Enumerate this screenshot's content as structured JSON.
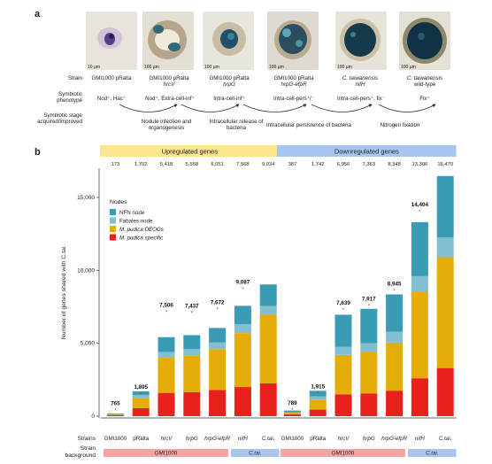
{
  "panel_a": {
    "letter": "a",
    "row_labels": {
      "strain": "Strain",
      "phenotype": "Symbiotic phenotype",
      "stage": "Symbiotic stage acquired/improved"
    },
    "scale_bars": [
      "10 µm",
      "100 µm",
      "100 µm",
      "100 µm",
      "100 µm",
      "100 µm"
    ],
    "strains": [
      {
        "line1": "GMI1000 pRalta",
        "line2": ""
      },
      {
        "line1": "GMI1000 pRalta",
        "line2": "hrcV"
      },
      {
        "line1": "GMI1000 pRalta",
        "line2": "hrpG"
      },
      {
        "line1": "GMI1000 pRalta",
        "line2": "hrpG-efpR"
      },
      {
        "line1": "C. taiwanensis",
        "line2": "nifH"
      },
      {
        "line1": "C. taiwanensis",
        "line2": "wild-type"
      }
    ],
    "phenotypes": [
      "Nod⁺, Hac⁺",
      "Nod⁺, Extra-cell-inf⁺",
      "Intra-cell-inf⁺",
      "Intra-cell-pers⁺/⁻",
      "Intra-cell-pers⁺, fix⁻",
      "Fix⁺"
    ],
    "stages": [
      "Nodule infection and organogenesis",
      "Intracellular release of bacteria",
      "Intracellular persistence of bacteria",
      "Nitrogen fixation"
    ]
  },
  "panel_b": {
    "letter": "b"
  },
  "chart_data": {
    "type": "bar",
    "stacked": true,
    "ylabel": "Number of genes shared with C.tai.",
    "ylim": [
      0,
      17000
    ],
    "yticks": [
      0,
      5000,
      10000,
      15000
    ],
    "ytick_labels": [
      "0",
      "5,000",
      "10,000",
      "15,000"
    ],
    "groups": [
      {
        "label": "Upregulated genes",
        "color": "#fbe58f",
        "categories": [
          "GMI1000",
          "pRalta",
          "hrcV",
          "hrpG",
          "hrpG-efpR",
          "nifH",
          "C.tai."
        ],
        "totals": [
          "173",
          "1,702",
          "5,418",
          "5,558",
          "6,051",
          "7,568",
          "9,034"
        ],
        "shared_labels": [
          "765",
          "1,895",
          "7,506",
          "7,437",
          "7,672",
          "9,087",
          ""
        ],
        "shared_values": [
          765,
          1895,
          7506,
          7437,
          7672,
          9087,
          null
        ],
        "series": [
          {
            "name": "M. pudica specific",
            "values": [
              60,
              550,
              1600,
              1650,
              1800,
              2000,
              2250
            ]
          },
          {
            "name": "M. pudica DEOGs",
            "values": [
              40,
              700,
              2400,
              2500,
              2800,
              3700,
              4700
            ]
          },
          {
            "name": "Fabales node",
            "values": [
              20,
              200,
              400,
              450,
              450,
              600,
              600
            ]
          },
          {
            "name": "NFN node",
            "values": [
              53,
              252,
              1018,
              958,
              1001,
              1268,
              1484
            ]
          }
        ],
        "backgrounds": [
          {
            "label": "GMI1000",
            "from": 0,
            "to": 4,
            "color": "#f6a5a5"
          },
          {
            "label": "C.tai.",
            "from": 5,
            "to": 6,
            "color": "#a8c6f0"
          }
        ]
      },
      {
        "label": "Downregulated genes",
        "color": "#a8c6f0",
        "categories": [
          "GMI1000",
          "pRalta",
          "hrcV",
          "hrpG",
          "hrpG-efpR",
          "nifH",
          "C.tai."
        ],
        "totals": [
          "387",
          "1,742",
          "6,956",
          "7,363",
          "8,348",
          "13,306",
          "16,470"
        ],
        "shared_labels": [
          "789",
          "1,915",
          "7,639",
          "7,917",
          "8,945",
          "14,404",
          ""
        ],
        "shared_values": [
          789,
          1915,
          7639,
          7917,
          8945,
          14404,
          null
        ],
        "series": [
          {
            "name": "M. pudica specific",
            "values": [
              120,
              450,
              1500,
              1550,
              1750,
              2600,
              3300
            ]
          },
          {
            "name": "M. pudica DEOGs",
            "values": [
              120,
              650,
              2700,
              2850,
              3300,
              5900,
              7600
            ]
          },
          {
            "name": "Fabales node",
            "values": [
              30,
              250,
              550,
              600,
              750,
              1100,
              1350
            ]
          },
          {
            "name": "NFN node",
            "values": [
              117,
              392,
              2206,
              2363,
              2548,
              3706,
              4220
            ]
          }
        ],
        "backgrounds": [
          {
            "label": "GMI1000",
            "from": 0,
            "to": 4,
            "color": "#f6a5a5"
          },
          {
            "label": "C.tai.",
            "from": 5,
            "to": 6,
            "color": "#a8c6f0"
          }
        ]
      }
    ],
    "legend": {
      "title": "Nodes",
      "placement": "top-left",
      "entries": [
        {
          "name": "NFN node",
          "color": "#3a9bb5"
        },
        {
          "name": "Fabales node",
          "color": "#83bfd0"
        },
        {
          "name": "M. pudica DEOGs",
          "color": "#e4ad0a"
        },
        {
          "name": "M. pudica specific",
          "color": "#e8211c"
        }
      ]
    },
    "bottom_labels": {
      "strains": "Strains",
      "background": "Strain background"
    }
  }
}
